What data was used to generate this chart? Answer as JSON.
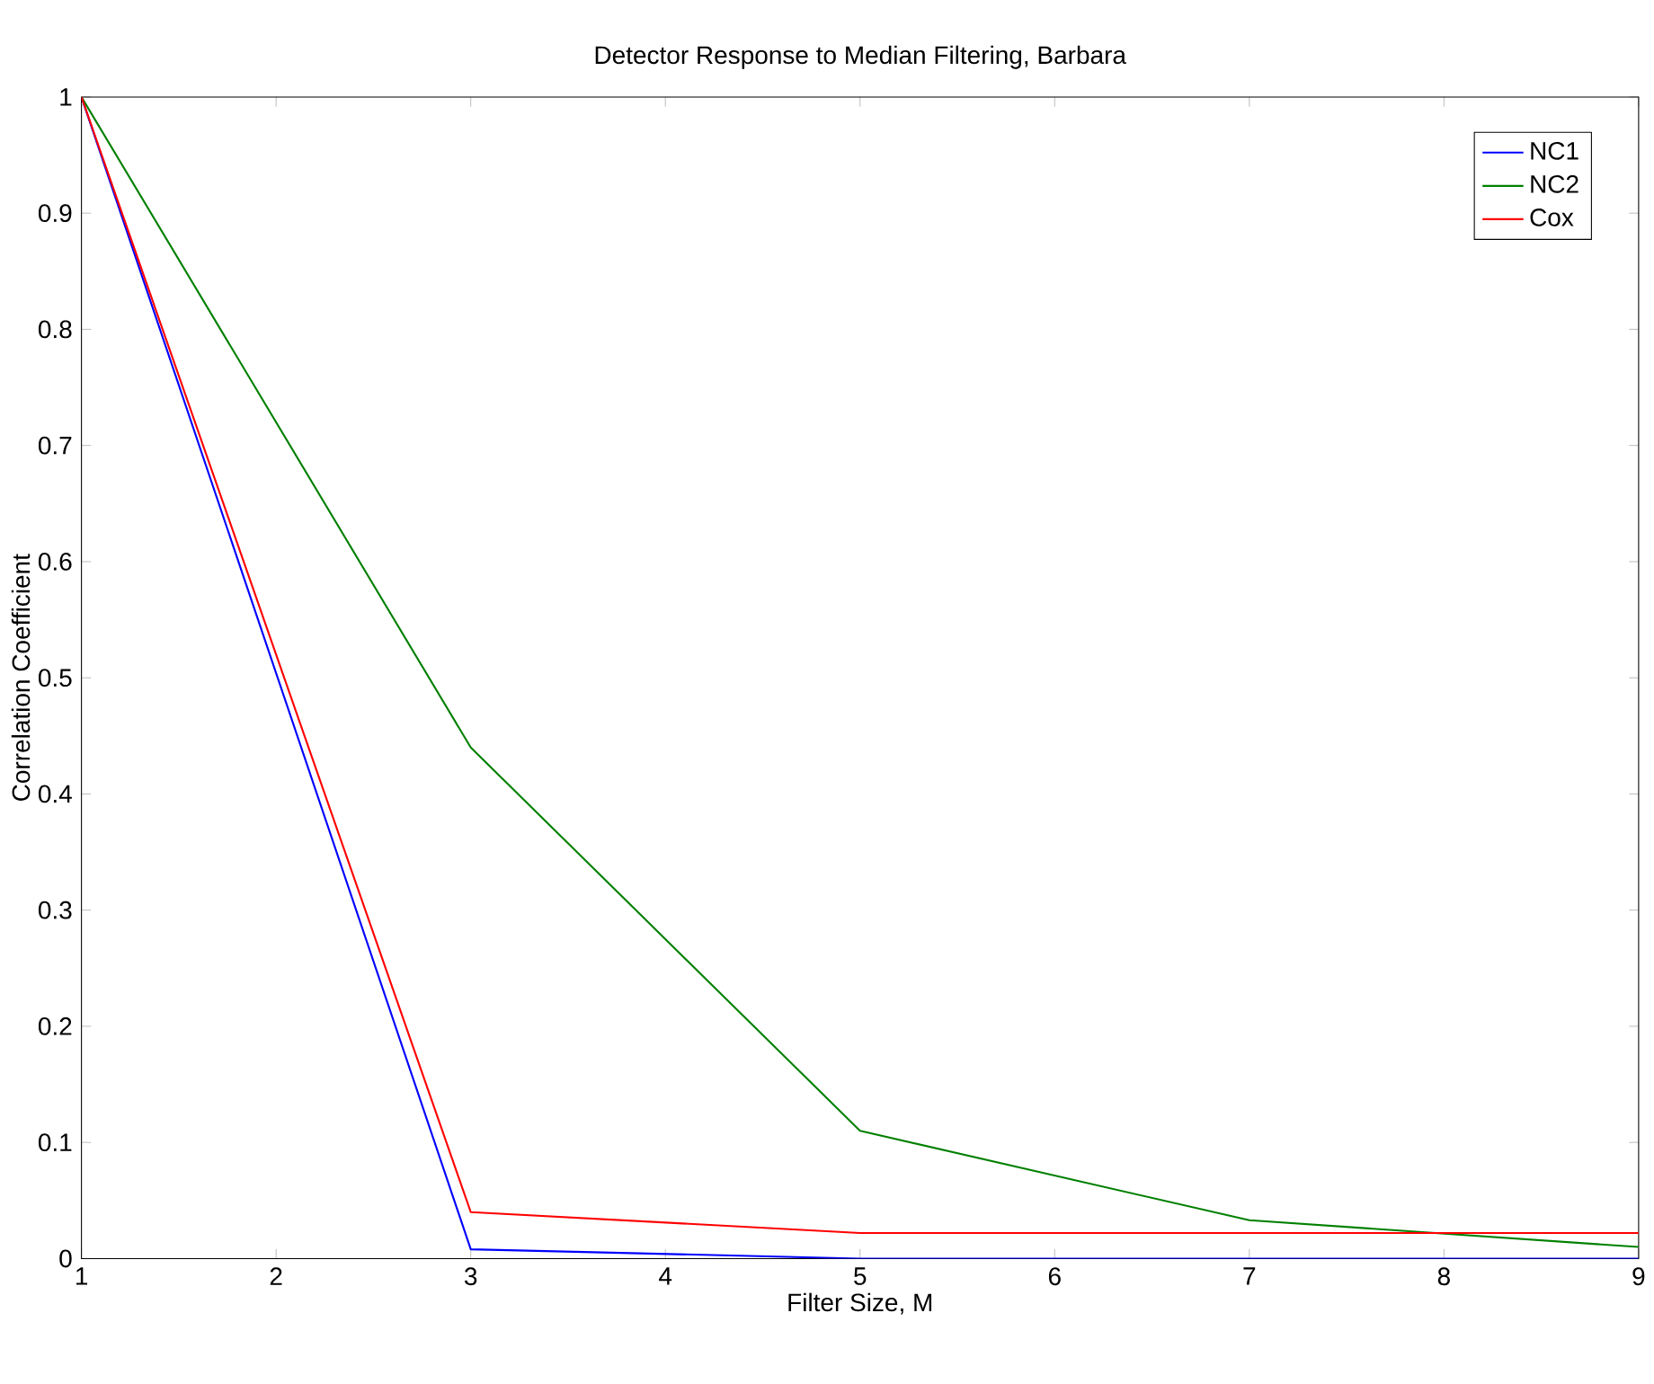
{
  "chart_data": {
    "type": "line",
    "title": "Detector Response to Median Filtering, Barbara",
    "xlabel": "Filter Size, M",
    "ylabel": "Correlation Coefficient",
    "x": [
      1,
      3,
      5,
      7,
      9
    ],
    "series": [
      {
        "name": "NC1",
        "color": "#0000ff",
        "values": [
          1,
          0.008,
          0,
          0,
          0
        ]
      },
      {
        "name": "NC2",
        "color": "#008000",
        "values": [
          1,
          0.44,
          0.11,
          0.033,
          0.01
        ]
      },
      {
        "name": "Cox",
        "color": "#ff0000",
        "values": [
          1,
          0.04,
          0.022,
          0.022,
          0.022
        ]
      }
    ],
    "xlim": [
      1,
      9
    ],
    "ylim": [
      0,
      1
    ],
    "xticks": [
      1,
      2,
      3,
      4,
      5,
      6,
      7,
      8,
      9
    ],
    "yticks": [
      0,
      0.1,
      0.2,
      0.3,
      0.4,
      0.5,
      0.6,
      0.7,
      0.8,
      0.9,
      1
    ],
    "grid": false,
    "legend": "top right",
    "marker": "none",
    "line_style": "solid"
  }
}
